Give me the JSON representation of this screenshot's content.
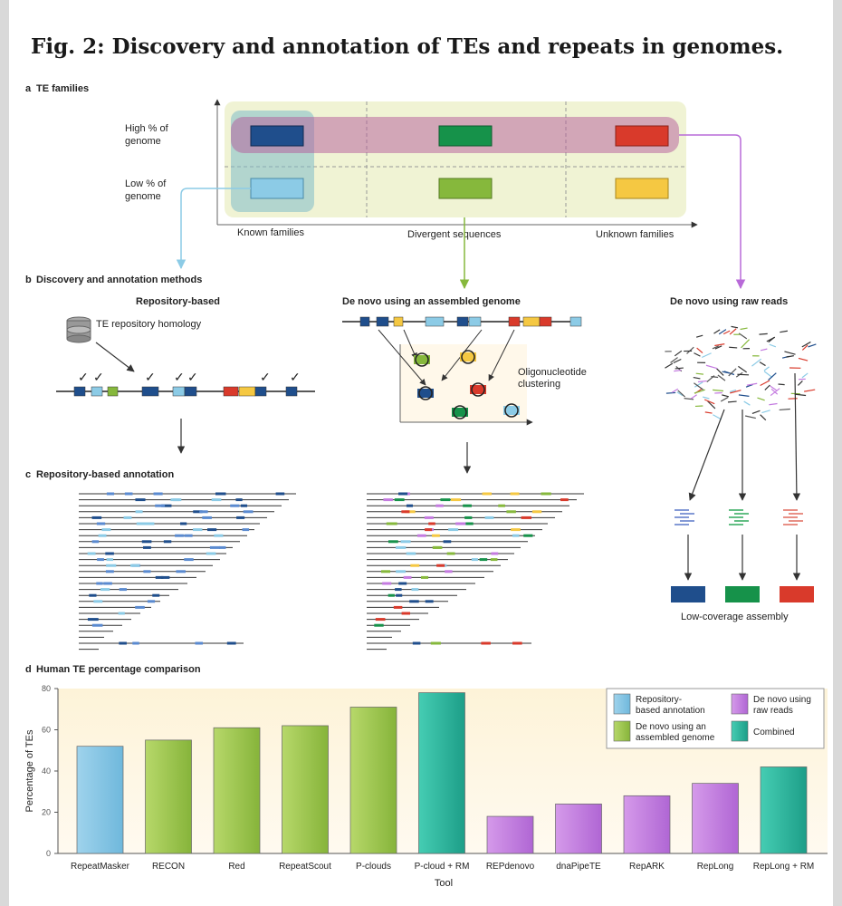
{
  "title": "Fig. 2: Discovery and annotation of TEs and repeats in genomes.",
  "panel_a": {
    "letter": "a",
    "heading": "TE families",
    "row_high": [
      "High % of",
      "genome"
    ],
    "row_low": [
      "Low % of",
      "genome"
    ],
    "col_known": "Known families",
    "col_divergent": "Divergent sequences",
    "col_unknown": "Unknown families",
    "colors": {
      "dark_blue": "#1f4e8c",
      "light_blue": "#8ccbe6",
      "dark_green": "#16924a",
      "light_green": "#86b83c",
      "red": "#d93a2b",
      "yellow": "#f5c842"
    }
  },
  "panel_b": {
    "letter": "b",
    "heading": "Discovery and annotation methods",
    "repo_heading": "Repository-based",
    "repo_label": "TE repository homology",
    "denovo_asm_heading": "De novo using an assembled genome",
    "oligo_label": [
      "Oligonucleotide",
      "clustering"
    ],
    "denovo_reads_heading": "De novo using raw reads",
    "low_cov_label": "Low-coverage assembly",
    "check_glyph": "✓",
    "icons": [
      "database-icon",
      "check-icon",
      "arrow-icon"
    ]
  },
  "panel_c": {
    "letter": "c",
    "heading": "Repository-based annotation"
  },
  "panel_d": {
    "letter": "d",
    "heading": "Human TE percentage comparison"
  },
  "chart_data": {
    "type": "bar",
    "xlabel": "Tool",
    "ylabel": "Percentage of TEs",
    "ylim": [
      0,
      80
    ],
    "yticks": [
      0,
      20,
      40,
      60,
      80
    ],
    "grid": false,
    "legend_position": "top-right",
    "categories": [
      "RepeatMasker",
      "RECON",
      "Red",
      "RepeatScout",
      "P-clouds",
      "P-cloud + RM",
      "REPdenovo",
      "dnaPipeTE",
      "RepARK",
      "RepLong",
      "RepLong + RM"
    ],
    "values": [
      52,
      55,
      61,
      62,
      71,
      78,
      18,
      24,
      28,
      34,
      42
    ],
    "groups": [
      "repo",
      "asm",
      "asm",
      "asm",
      "asm",
      "comb",
      "reads",
      "reads",
      "reads",
      "reads",
      "comb"
    ],
    "legend": [
      {
        "key": "repo",
        "lines": [
          "Repository-",
          "based annotation"
        ],
        "color": "#8ccbe6"
      },
      {
        "key": "reads",
        "lines": [
          "De novo using",
          "raw reads"
        ],
        "color": "#c47be0"
      },
      {
        "key": "asm",
        "lines": [
          "De novo using an",
          "assembled genome"
        ],
        "color": "#9fc94f"
      },
      {
        "key": "comb",
        "lines": [
          "Combined"
        ],
        "color": "#2ab8a0"
      }
    ]
  }
}
